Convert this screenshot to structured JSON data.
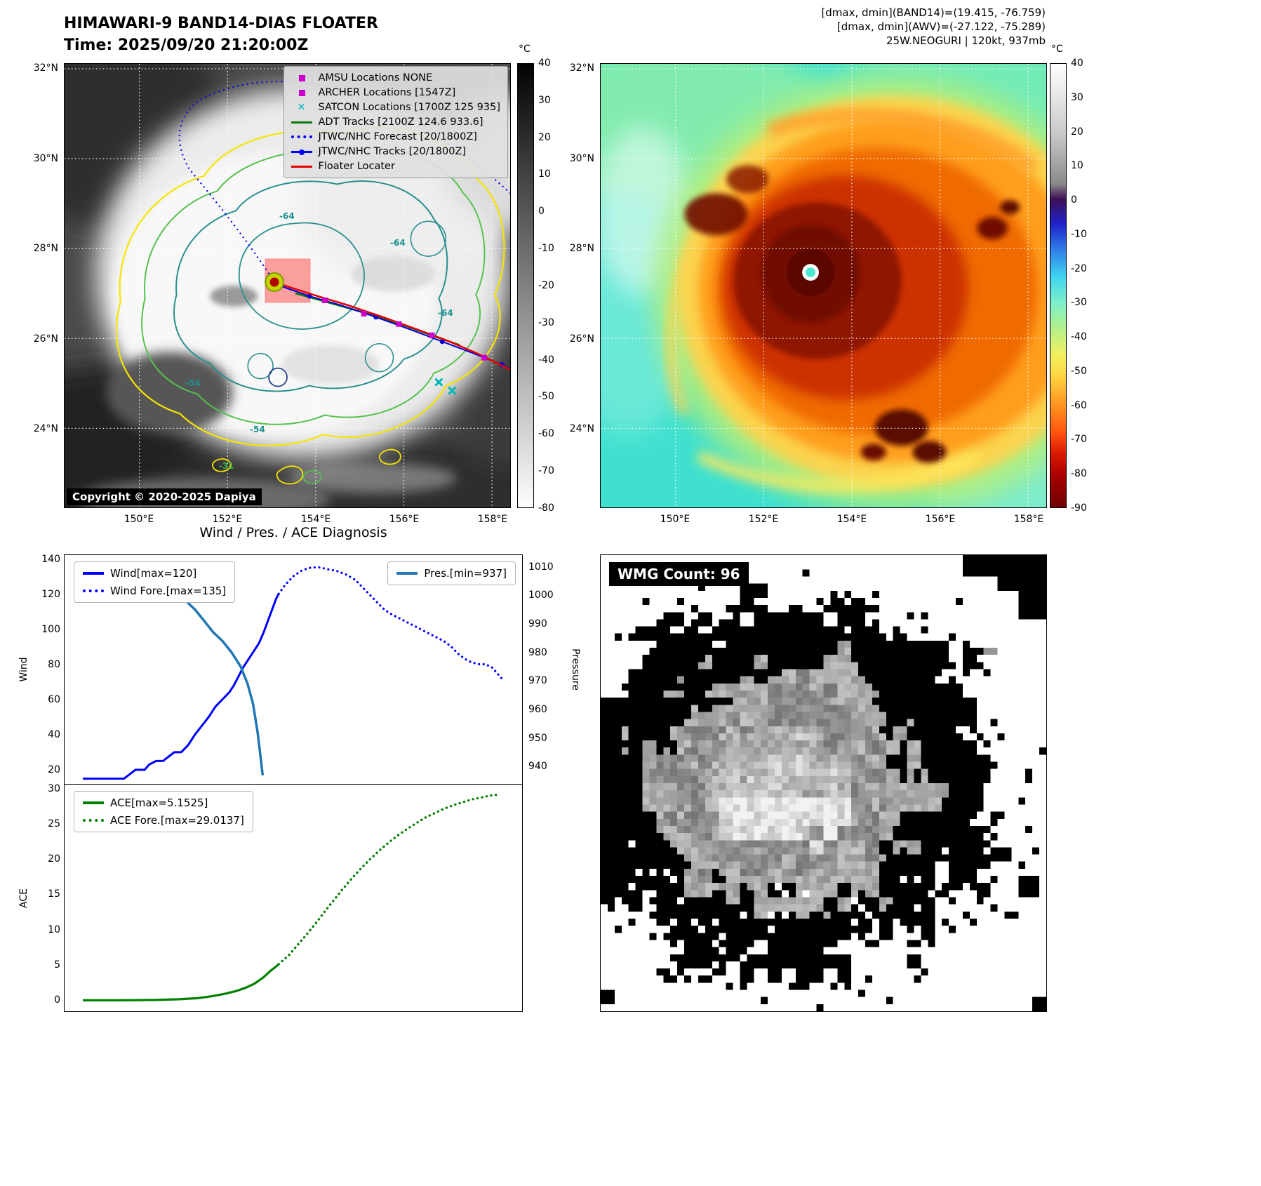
{
  "left_map": {
    "title_line1": "HIMAWARI-9 BAND14-DIAS FLOATER",
    "title_line2": "Time: 2025/09/20 21:20:00Z",
    "copyright": "Copyright © 2020-2025 Dapiya",
    "contour_labels": [
      "-64",
      "-64",
      "-54",
      "-54",
      "-31",
      "-64"
    ],
    "lat_ticks": [
      "32°N",
      "30°N",
      "28°N",
      "26°N",
      "24°N"
    ],
    "lon_ticks": [
      "150°E",
      "152°E",
      "154°E",
      "156°E",
      "158°E"
    ],
    "colorbar": {
      "unit": "°C",
      "ticks": [
        "40",
        "30",
        "20",
        "10",
        "0",
        "-10",
        "-20",
        "-30",
        "-40",
        "-50",
        "-60",
        "-70",
        "-80"
      ]
    },
    "legend": {
      "items": [
        {
          "label": "AMSU Locations NONE",
          "marker": "square",
          "color": "#cc00cc"
        },
        {
          "label": "ARCHER Locations [1547Z]",
          "marker": "square",
          "color": "#cc00cc"
        },
        {
          "label": "SATCON Locations [1700Z 125 935]",
          "marker": "x",
          "color": "#00b8b8"
        },
        {
          "label": "ADT Tracks [2100Z 124.6 933.6]",
          "marker": "line",
          "color": "#0a7a0a"
        },
        {
          "label": "JTWC/NHC Forecast [20/1800Z]",
          "marker": "dotted",
          "color": "#0000ff"
        },
        {
          "label": "JTWC/NHC Tracks [20/1800Z]",
          "marker": "linedot",
          "color": "#0000ff"
        },
        {
          "label": "Floater Locater",
          "marker": "line",
          "color": "#e60000"
        }
      ]
    }
  },
  "right_map": {
    "header_line1": "[dmax, dmin](BAND14)=(19.415, -76.759)",
    "header_line2": "[dmax, dmin](AWV)=(-27.122, -75.289)",
    "header_line3": "25W.NEOGURI | 120kt, 937mb",
    "lat_ticks": [
      "32°N",
      "30°N",
      "28°N",
      "26°N",
      "24°N"
    ],
    "lon_ticks": [
      "150°E",
      "152°E",
      "154°E",
      "156°E",
      "158°E"
    ],
    "colorbar": {
      "unit": "°C",
      "ticks": [
        "40",
        "30",
        "20",
        "10",
        "0",
        "-10",
        "-20",
        "-30",
        "-40",
        "-50",
        "-60",
        "-70",
        "-80",
        "-90"
      ]
    }
  },
  "diagnosis": {
    "title": "Wind / Pres. / ACE Diagnosis",
    "wind_ylabel": "Wind",
    "pressure_ylabel": "Pressure",
    "ace_ylabel": "ACE",
    "wind_yticks": [
      "140",
      "120",
      "100",
      "80",
      "60",
      "40",
      "20"
    ],
    "pressure_yticks": [
      "1010",
      "1000",
      "990",
      "980",
      "970",
      "960",
      "950",
      "940"
    ],
    "ace_yticks": [
      "30",
      "25",
      "20",
      "15",
      "10",
      "5",
      "0"
    ],
    "legend_wind": "Wind[max=120]",
    "legend_wind_fore": "Wind Fore.[max=135]",
    "legend_pres": "Pres.[min=937]",
    "legend_ace": "ACE[max=5.1525]",
    "legend_ace_fore": "ACE Fore.[max=29.0137]"
  },
  "wmg": {
    "count_label": "WMG Count: 96"
  },
  "chart_data": [
    {
      "type": "line",
      "title": "Wind / Pres. / ACE Diagnosis",
      "ylabel": "Wind",
      "y2label": "Pressure",
      "xlim": [
        0,
        1
      ],
      "ylim": [
        12,
        142
      ],
      "y2lim": [
        934,
        1014
      ],
      "legend_position": "upper left / upper right",
      "grid": false,
      "series": [
        {
          "id": "wind",
          "name": "Wind[max=120]",
          "axis": "left",
          "style": "solid",
          "color": "#0000ff",
          "width": 3,
          "points": [
            [
              0.04,
              15
            ],
            [
              0.1,
              15
            ],
            [
              0.13,
              15
            ],
            [
              0.145,
              18
            ],
            [
              0.155,
              20
            ],
            [
              0.175,
              20
            ],
            [
              0.185,
              23
            ],
            [
              0.2,
              25
            ],
            [
              0.215,
              25
            ],
            [
              0.23,
              28
            ],
            [
              0.24,
              30
            ],
            [
              0.255,
              30
            ],
            [
              0.27,
              34
            ],
            [
              0.285,
              40
            ],
            [
              0.3,
              45
            ],
            [
              0.315,
              50
            ],
            [
              0.33,
              56
            ],
            [
              0.345,
              60
            ],
            [
              0.36,
              64
            ],
            [
              0.37,
              68
            ],
            [
              0.38,
              73
            ],
            [
              0.39,
              78
            ],
            [
              0.4,
              82
            ],
            [
              0.415,
              88
            ],
            [
              0.425,
              92
            ],
            [
              0.435,
              98
            ],
            [
              0.445,
              105
            ],
            [
              0.455,
              112
            ],
            [
              0.462,
              117
            ],
            [
              0.468,
              120
            ]
          ]
        },
        {
          "id": "wind_fore",
          "name": "Wind Fore.[max=135]",
          "axis": "left",
          "style": "dotted",
          "color": "#0000ff",
          "width": 3.2,
          "points": [
            [
              0.468,
              120
            ],
            [
              0.482,
              125
            ],
            [
              0.5,
              130
            ],
            [
              0.52,
              133.5
            ],
            [
              0.54,
              135
            ],
            [
              0.558,
              135
            ],
            [
              0.575,
              134
            ],
            [
              0.595,
              133
            ],
            [
              0.615,
              131
            ],
            [
              0.635,
              128
            ],
            [
              0.65,
              124
            ],
            [
              0.665,
              120
            ],
            [
              0.68,
              116
            ],
            [
              0.695,
              112
            ],
            [
              0.71,
              109
            ],
            [
              0.725,
              107
            ],
            [
              0.74,
              105
            ],
            [
              0.755,
              103
            ],
            [
              0.77,
              101
            ],
            [
              0.785,
              99
            ],
            [
              0.8,
              97
            ],
            [
              0.815,
              95
            ],
            [
              0.83,
              93
            ],
            [
              0.845,
              90
            ],
            [
              0.86,
              86
            ],
            [
              0.875,
              83
            ],
            [
              0.89,
              81
            ],
            [
              0.905,
              80
            ],
            [
              0.92,
              80
            ],
            [
              0.935,
              78
            ],
            [
              0.945,
              75
            ],
            [
              0.955,
              72
            ]
          ]
        },
        {
          "id": "pres",
          "name": "Pres.[min=937]",
          "axis": "right",
          "style": "solid",
          "color": "#1f77b4",
          "width": 3.5,
          "points": [
            [
              0.04,
              1008
            ],
            [
              0.1,
              1008
            ],
            [
              0.14,
              1007
            ],
            [
              0.18,
              1005
            ],
            [
              0.21,
              1004
            ],
            [
              0.24,
              1001
            ],
            [
              0.265,
              998
            ],
            [
              0.285,
              995
            ],
            [
              0.305,
              991
            ],
            [
              0.325,
              987
            ],
            [
              0.345,
              984
            ],
            [
              0.365,
              980
            ],
            [
              0.385,
              975
            ],
            [
              0.4,
              969
            ],
            [
              0.412,
              962
            ],
            [
              0.422,
              952
            ],
            [
              0.428,
              944
            ],
            [
              0.433,
              937
            ]
          ]
        }
      ]
    },
    {
      "type": "line",
      "ylabel": "ACE",
      "xlim": [
        0,
        1
      ],
      "ylim": [
        -1.5,
        30.5
      ],
      "grid": false,
      "series": [
        {
          "id": "ace",
          "name": "ACE[max=5.1525]",
          "axis": "left",
          "style": "solid",
          "color": "#008000",
          "width": 3.2,
          "points": [
            [
              0.04,
              0.05
            ],
            [
              0.12,
              0.05
            ],
            [
              0.2,
              0.1
            ],
            [
              0.25,
              0.2
            ],
            [
              0.29,
              0.35
            ],
            [
              0.32,
              0.6
            ],
            [
              0.35,
              0.95
            ],
            [
              0.375,
              1.35
            ],
            [
              0.395,
              1.8
            ],
            [
              0.415,
              2.4
            ],
            [
              0.435,
              3.3
            ],
            [
              0.45,
              4.2
            ],
            [
              0.462,
              4.8
            ],
            [
              0.468,
              5.15
            ]
          ]
        },
        {
          "id": "ace_fore",
          "name": "ACE Fore.[max=29.0137]",
          "axis": "left",
          "style": "dotted",
          "color": "#008000",
          "width": 3.4,
          "points": [
            [
              0.468,
              5.15
            ],
            [
              0.49,
              6.4
            ],
            [
              0.51,
              7.9
            ],
            [
              0.53,
              9.4
            ],
            [
              0.55,
              11.0
            ],
            [
              0.57,
              12.7
            ],
            [
              0.59,
              14.3
            ],
            [
              0.61,
              15.9
            ],
            [
              0.63,
              17.4
            ],
            [
              0.65,
              18.8
            ],
            [
              0.67,
              20.1
            ],
            [
              0.69,
              21.3
            ],
            [
              0.71,
              22.4
            ],
            [
              0.73,
              23.4
            ],
            [
              0.75,
              24.3
            ],
            [
              0.77,
              25.1
            ],
            [
              0.79,
              25.9
            ],
            [
              0.81,
              26.5
            ],
            [
              0.83,
              27.1
            ],
            [
              0.85,
              27.6
            ],
            [
              0.87,
              28.0
            ],
            [
              0.89,
              28.4
            ],
            [
              0.905,
              28.6
            ],
            [
              0.92,
              28.8
            ],
            [
              0.935,
              29.0
            ],
            [
              0.95,
              29.1
            ]
          ]
        }
      ]
    }
  ]
}
